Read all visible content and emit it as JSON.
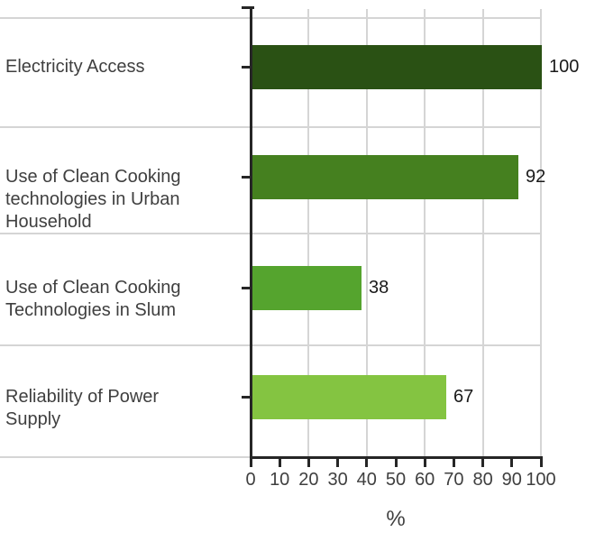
{
  "chart_data": {
    "type": "bar",
    "orientation": "horizontal",
    "title": "",
    "categories": [
      "Electricity Access",
      "Use of Clean Cooking technologies in Urban Household",
      "Use of Clean Cooking Technologies in Slum",
      "Reliability of Power Supply"
    ],
    "values": [
      100,
      92,
      38,
      67
    ],
    "value_labels": [
      "100",
      "92",
      "38",
      "67"
    ],
    "bar_colors": [
      "#2a5114",
      "#45801f",
      "#55a42e",
      "#84c441"
    ],
    "xlabel": "%",
    "ylabel": "",
    "x_ticks": [
      0,
      10,
      20,
      30,
      40,
      50,
      60,
      70,
      80,
      90,
      100
    ],
    "xlim": [
      0,
      100
    ],
    "grid_values": [
      20,
      40,
      60,
      80,
      100
    ],
    "grid": "on",
    "legend_position": "none"
  },
  "colors": {
    "axis": "#262626",
    "gridline": "#d5d5d5",
    "category_label": "#3f3f3f",
    "tick_label": "#3f3f3f",
    "value_label": "#1a1a1a",
    "background": "#ffffff"
  }
}
